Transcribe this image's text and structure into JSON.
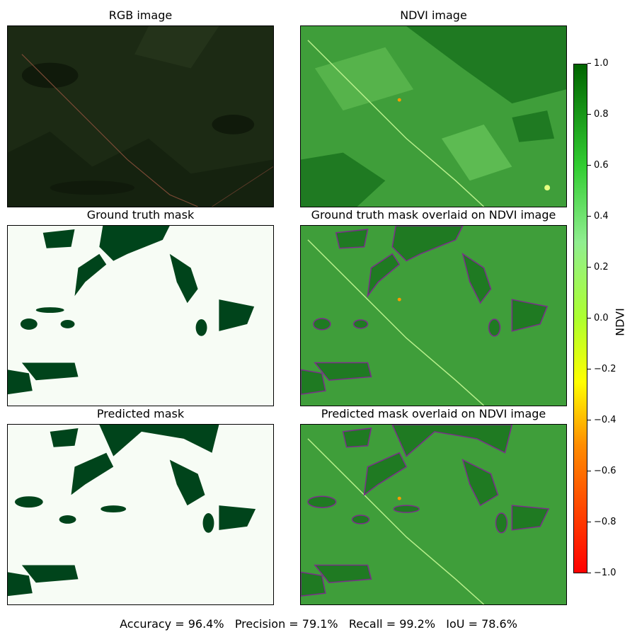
{
  "panels": [
    {
      "title": "RGB image",
      "kind": "rgb"
    },
    {
      "title": "NDVI image",
      "kind": "ndvi"
    },
    {
      "title": "Ground truth mask",
      "kind": "mask"
    },
    {
      "title": "Ground truth mask overlaid on NDVI image",
      "kind": "overlay"
    },
    {
      "title": "Predicted mask",
      "kind": "mask"
    },
    {
      "title": "Predicted mask overlaid on NDVI image",
      "kind": "overlay"
    }
  ],
  "colorbar": {
    "label": "NDVI",
    "ticks": [
      "1.0",
      "0.8",
      "0.6",
      "0.4",
      "0.2",
      "0.0",
      "−0.2",
      "−0.4",
      "−0.6",
      "−0.8",
      "−1.0"
    ],
    "range": [
      -1.0,
      1.0
    ],
    "colors": [
      "#ff0000",
      "#ff8c00",
      "#ffff00",
      "#adff2f",
      "#90ee90",
      "#32cd32",
      "#006400"
    ]
  },
  "metrics": {
    "accuracy": "Accuracy = 96.4%",
    "precision": "Precision = 79.1%",
    "recall": "Recall = 99.2%",
    "iou": "IoU = 78.6%"
  },
  "colors": {
    "mask_fg": "#00441b",
    "mask_bg": "#f7fcf5",
    "overlay_outline": "#7b2d8b",
    "rgb_bg": "#1c2a14"
  }
}
